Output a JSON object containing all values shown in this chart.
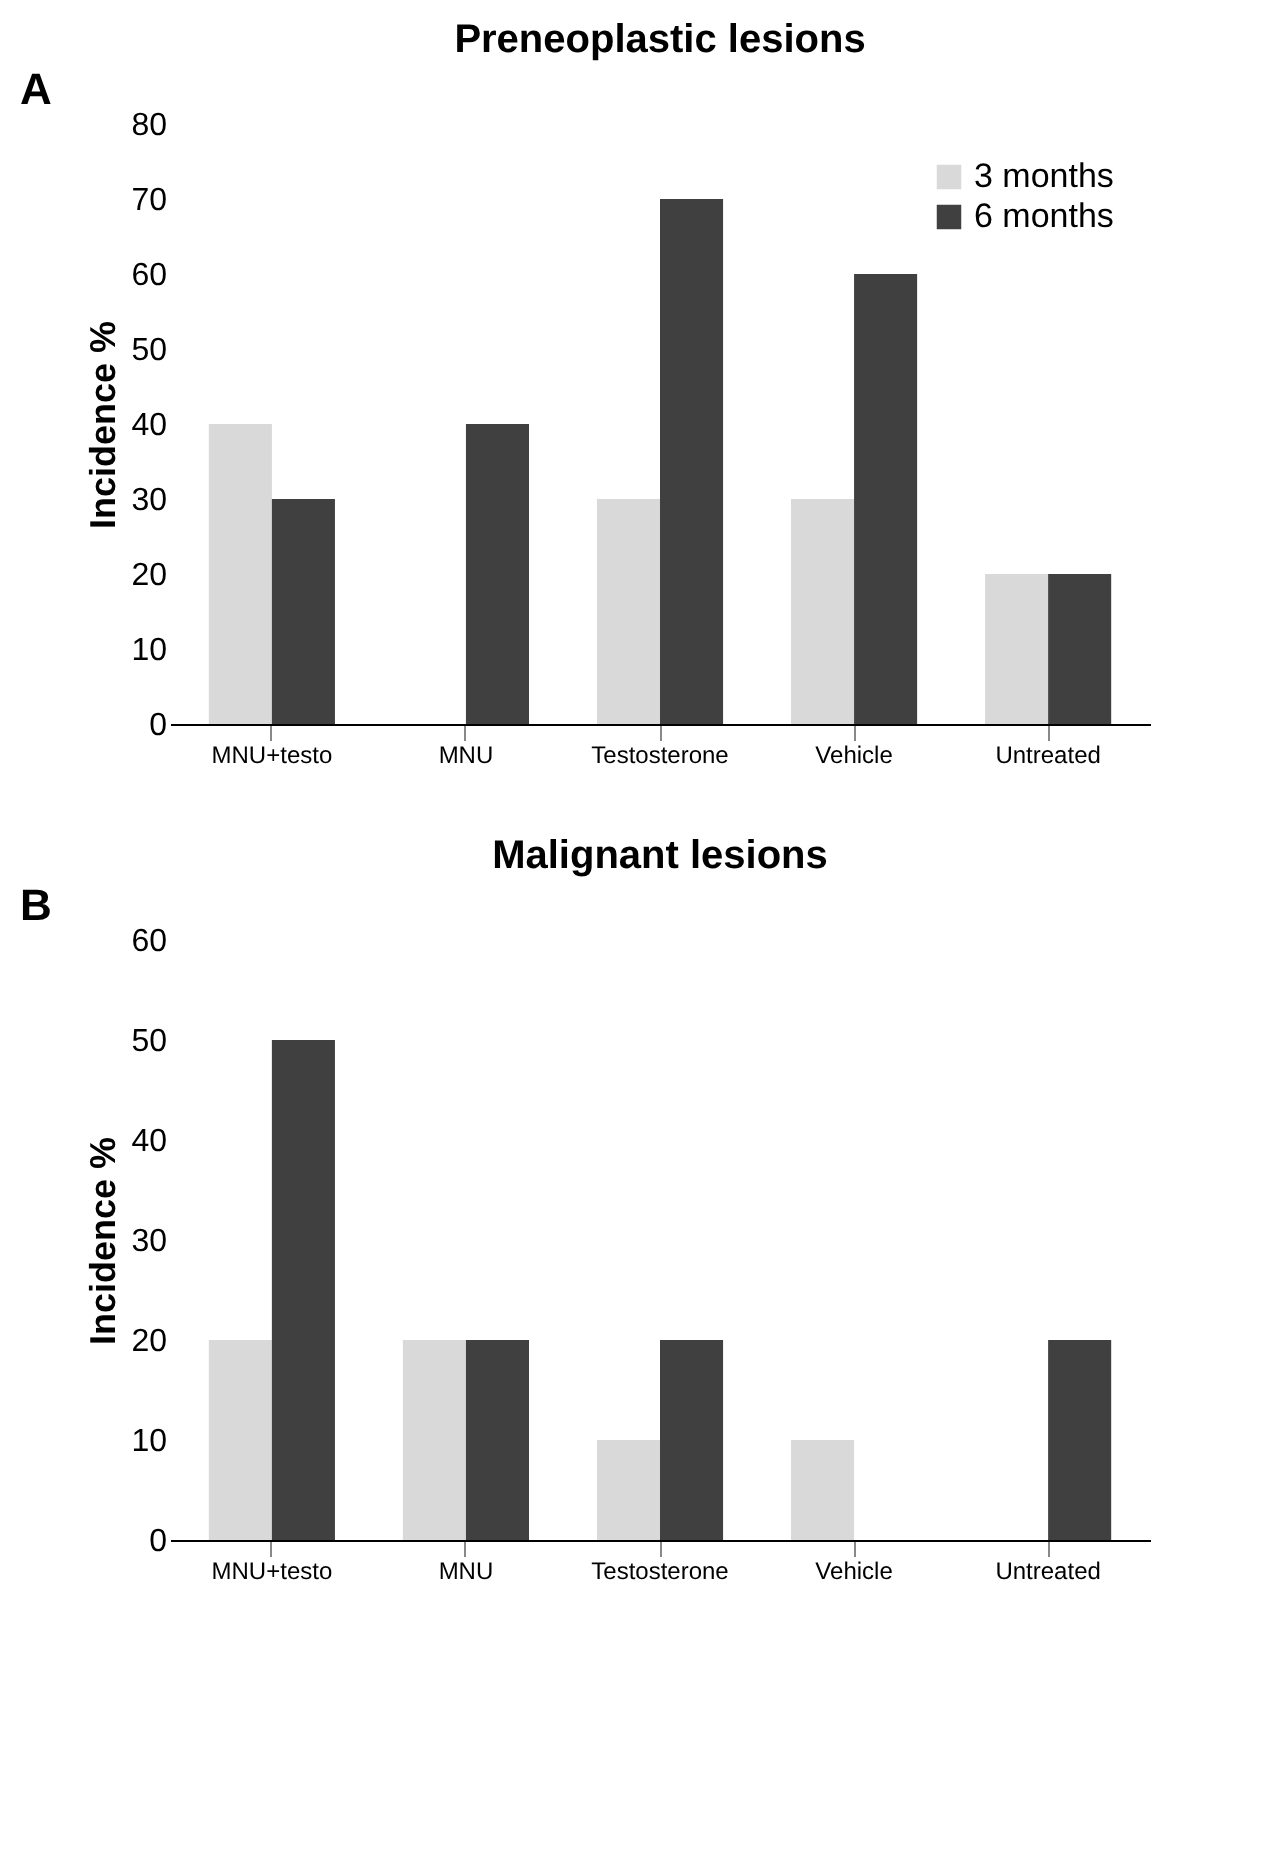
{
  "chart_data": [
    {
      "type": "bar",
      "title": "Preneoplastic lesions",
      "ylabel": "Incidence %",
      "annotations": [
        "A"
      ],
      "categories": [
        "MNU+testo",
        "MNU",
        "Testosterone",
        "Vehicle",
        "Untreated"
      ],
      "series": [
        {
          "name": "3 months",
          "color": "#d9d9d9",
          "values": [
            40,
            0,
            30,
            30,
            20
          ]
        },
        {
          "name": "6 months",
          "color": "#404040",
          "values": [
            30,
            40,
            70,
            60,
            20
          ]
        }
      ],
      "ylim": [
        0,
        80
      ],
      "yticks": [
        0,
        10,
        20,
        30,
        40,
        50,
        60,
        70,
        80
      ],
      "grid": false,
      "legend": "top right"
    },
    {
      "type": "bar",
      "title": "Malignant lesions",
      "ylabel": "Incidence %",
      "annotations": [
        "B"
      ],
      "categories": [
        "MNU+testo",
        "MNU",
        "Testosterone",
        "Vehicle",
        "Untreated"
      ],
      "series": [
        {
          "name": "3 months",
          "color": "#d9d9d9",
          "values": [
            20,
            20,
            10,
            10,
            0
          ]
        },
        {
          "name": "6 months",
          "color": "#404040",
          "values": [
            50,
            20,
            20,
            0,
            20
          ]
        }
      ],
      "ylim": [
        0,
        60
      ],
      "yticks": [
        0,
        10,
        20,
        30,
        40,
        50,
        60
      ],
      "grid": false,
      "legend": "top right"
    }
  ]
}
